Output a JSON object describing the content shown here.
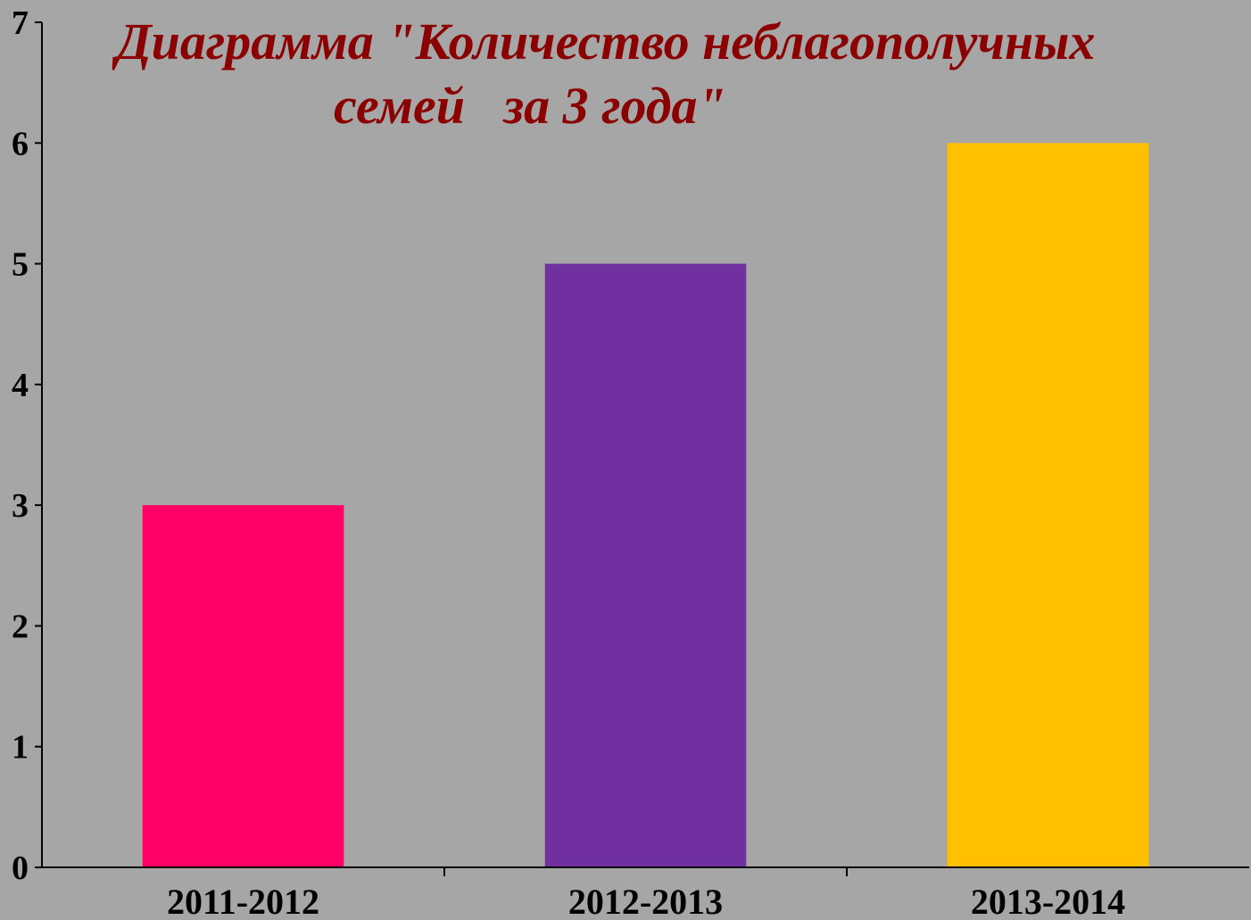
{
  "chart_data": {
    "type": "bar",
    "title_lines": [
      "Диаграмма \"Количество неблагополучных",
      "семей   за 3 года\""
    ],
    "categories": [
      "2011-2012",
      "2012-2013",
      "2013-2014"
    ],
    "values": [
      3,
      5,
      6
    ],
    "colors": [
      "#ff0066",
      "#7030a0",
      "#ffc000"
    ],
    "title_color": "#8b0000",
    "ylim": [
      0,
      7
    ],
    "yticks": [
      0,
      1,
      2,
      3,
      4,
      5,
      6,
      7
    ],
    "grid": false,
    "legend": "none"
  }
}
